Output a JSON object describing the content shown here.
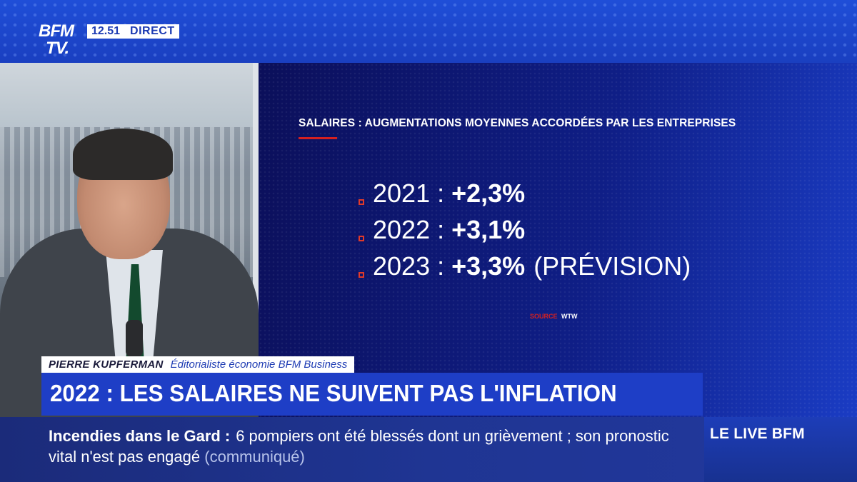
{
  "channel": {
    "logo_line1": "BFM",
    "logo_line2": "TV.",
    "time": "12.51",
    "live_label": "DIRECT"
  },
  "graphic": {
    "title": "SALAIRES : AUGMENTATIONS MOYENNES ACCORDÉES PAR LES ENTREPRISES",
    "stats": [
      {
        "year": "2021",
        "sep": ":",
        "value": "+2,3%",
        "note": ""
      },
      {
        "year": "2022",
        "sep": ":",
        "value": "+3,1%",
        "note": ""
      },
      {
        "year": "2023",
        "sep": ":",
        "value": "+3,3%",
        "note": "(PRÉVISION)"
      }
    ],
    "source_label": "SOURCE",
    "source_value": "WTW"
  },
  "lower_third": {
    "name": "PIERRE KUPFERMAN",
    "role": "Éditorialiste économie BFM Business",
    "headline": "2022 : LES SALAIRES NE SUIVENT PAS L'INFLATION"
  },
  "ticker": {
    "topic": "Incendies dans le Gard",
    "colon": ":",
    "text": "6 pompiers ont été blessés dont un grièvement ; son pronostic vital n'est pas engagé",
    "attribution": "(communiqué)"
  },
  "live_bfm": {
    "label": "LE LIVE BFM"
  },
  "colors": {
    "brand_blue": "#1e3ec6",
    "accent_red": "#d42020",
    "panel_dark": "#0b0f5a"
  }
}
